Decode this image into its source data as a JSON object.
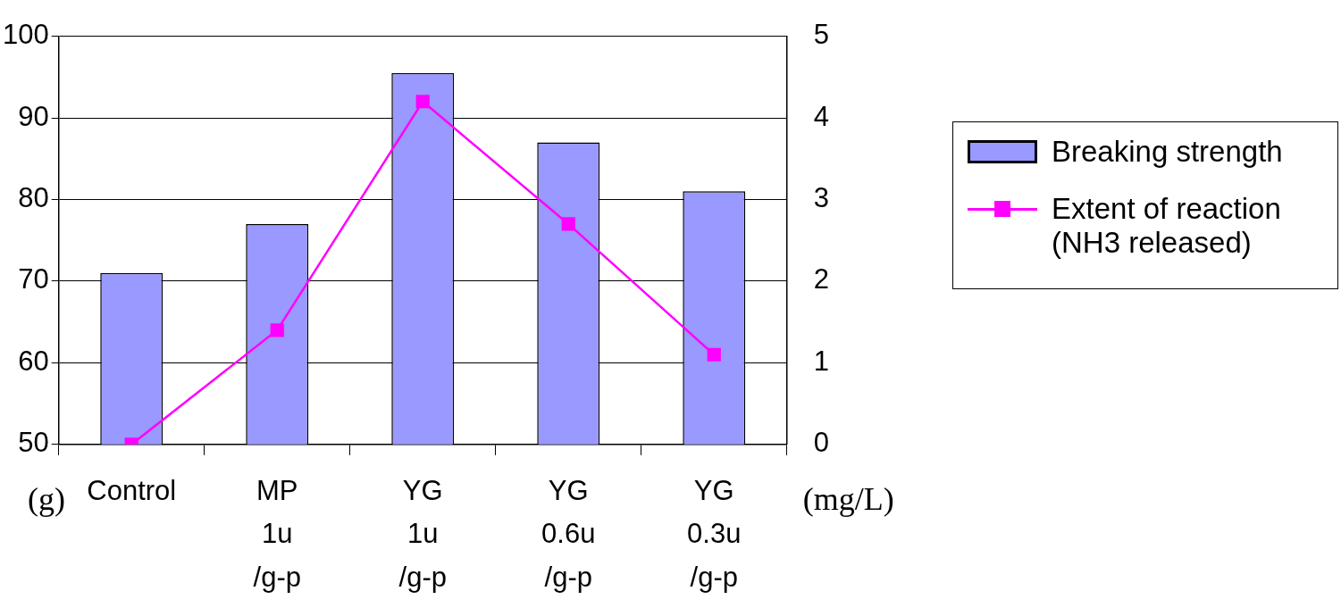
{
  "chart_data": {
    "type": "bar",
    "categories": [
      "Control",
      "MP\n1u\n/g-p",
      "YG\n1u\n/g-p",
      "YG\n0.6u\n/g-p",
      "YG\n0.3u\n/g-p"
    ],
    "series": [
      {
        "name": "Breaking strength",
        "color": "#9999ff",
        "values": [
          71,
          77,
          95.5,
          87,
          81
        ]
      },
      {
        "name": "Extent of reaction (NH3  released)",
        "type": "line",
        "axis": "y2",
        "color": "#ff00ff",
        "marker": "square",
        "values": [
          0,
          1.4,
          4.2,
          2.7,
          1.1
        ]
      }
    ],
    "ylabel": "(g)",
    "y2label": "(mg/L)",
    "ylim": [
      50,
      100
    ],
    "yticks": [
      50,
      60,
      70,
      80,
      90,
      100
    ],
    "y2lim": [
      0,
      5
    ],
    "y2ticks": [
      0,
      1,
      2,
      3,
      4,
      5
    ],
    "grid": "y",
    "legend": "right"
  }
}
